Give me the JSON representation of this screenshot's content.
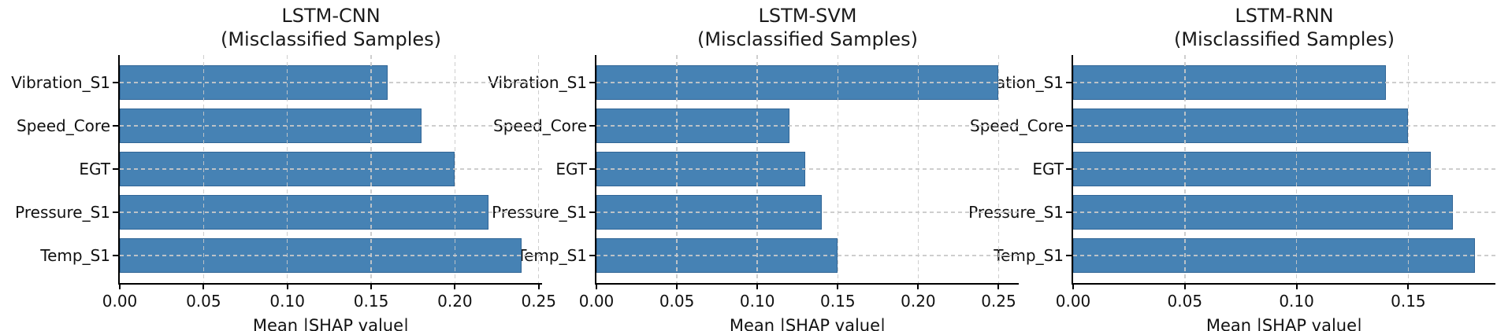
{
  "figure": {
    "background": "#ffffff",
    "bar_color": "#4682B4",
    "grid_color": "#c9c9c9",
    "axis_color": "#000000",
    "text_color": "#111111"
  },
  "chart_data": [
    {
      "type": "bar",
      "orientation": "horizontal",
      "title": "LSTM-CNN",
      "subtitle": "(Misclassified Samples)",
      "categories": [
        "Vibration_S1",
        "Speed_Core",
        "EGT",
        "Pressure_S1",
        "Temp_S1"
      ],
      "values": [
        0.16,
        0.18,
        0.2,
        0.22,
        0.24
      ],
      "xlabel": "Mean |SHAP value|",
      "ylabel": "",
      "xlim": [
        0,
        0.252
      ],
      "xticks": [
        0,
        0.05,
        0.1,
        0.15,
        0.2,
        0.25
      ],
      "grid": true,
      "legend": false
    },
    {
      "type": "bar",
      "orientation": "horizontal",
      "title": "LSTM-SVM",
      "subtitle": "(Misclassified Samples)",
      "categories": [
        "Vibration_S1",
        "Speed_Core",
        "EGT",
        "Pressure_S1",
        "Temp_S1"
      ],
      "values": [
        0.25,
        0.12,
        0.13,
        0.14,
        0.15
      ],
      "xlabel": "Mean |SHAP value|",
      "ylabel": "",
      "xlim": [
        0,
        0.2625
      ],
      "xticks": [
        0,
        0.05,
        0.1,
        0.15,
        0.2,
        0.25
      ],
      "grid": true,
      "legend": false
    },
    {
      "type": "bar",
      "orientation": "horizontal",
      "title": "LSTM-RNN",
      "subtitle": "(Misclassified Samples)",
      "categories": [
        "Vibration_S1",
        "Speed_Core",
        "EGT",
        "Pressure_S1",
        "Temp_S1"
      ],
      "values": [
        0.14,
        0.15,
        0.16,
        0.17,
        0.18
      ],
      "xlabel": "Mean |SHAP value|",
      "ylabel": "",
      "xlim": [
        0,
        0.189
      ],
      "xticks": [
        0,
        0.05,
        0.1,
        0.15
      ],
      "grid": true,
      "legend": false
    }
  ]
}
